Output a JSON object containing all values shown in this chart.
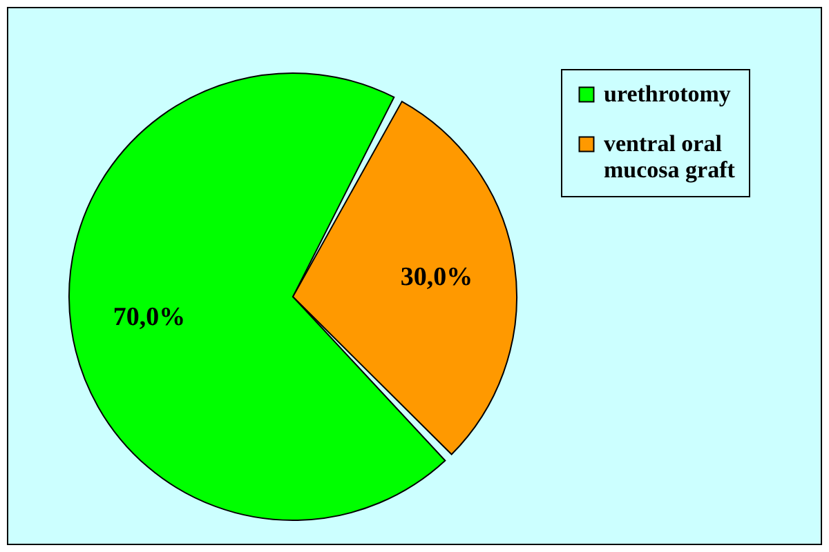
{
  "chart_data": {
    "type": "pie",
    "categories": [
      "urethrotomy",
      "ventral oral mucosa graft"
    ],
    "values": [
      70,
      30
    ],
    "colors": [
      "#00ff00",
      "#ff9900"
    ],
    "value_labels": [
      "70,0%",
      "30,0%"
    ],
    "legend": "right"
  }
}
